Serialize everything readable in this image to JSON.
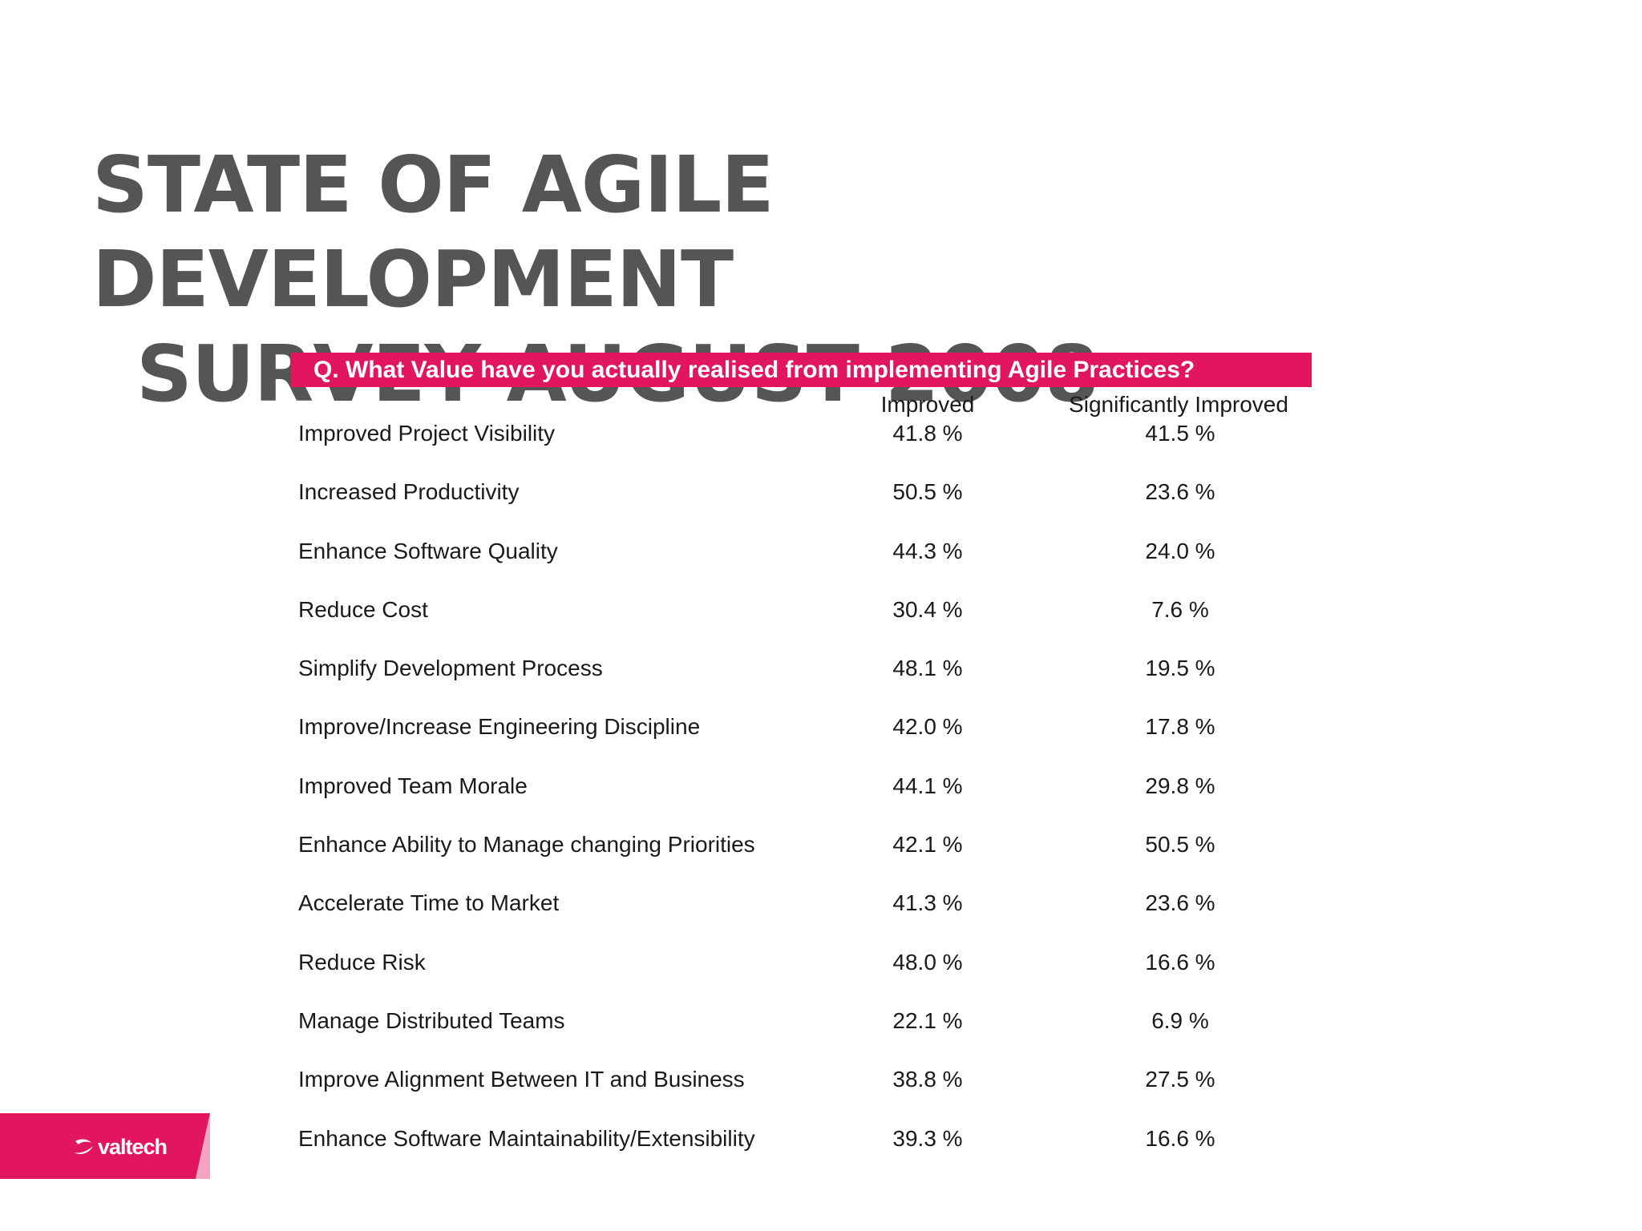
{
  "title": {
    "line1": "STATE OF AGILE DEVELOPMENT",
    "line2": "SURVEY AUGUST 2008"
  },
  "question": "Q. What Value have you actually realised from implementing Agile Practices?",
  "columns": {
    "improved": "Improved",
    "significant": "Significantly Improved"
  },
  "rows": [
    {
      "label": "Improved Project Visibility",
      "improved": "41.8 %",
      "significant": "41.5 %"
    },
    {
      "label": "Increased Productivity",
      "improved": "50.5 %",
      "significant": "23.6 %"
    },
    {
      "label": "Enhance Software Quality",
      "improved": "44.3 %",
      "significant": "24.0 %"
    },
    {
      "label": "Reduce Cost",
      "improved": "30.4 %",
      "significant": "7.6 %"
    },
    {
      "label": "Simplify Development Process",
      "improved": "48.1 %",
      "significant": "19.5 %"
    },
    {
      "label": "Improve/Increase Engineering Discipline",
      "improved": "42.0 %",
      "significant": "17.8 %"
    },
    {
      "label": "Improved Team Morale",
      "improved": "44.1 %",
      "significant": "29.8 %"
    },
    {
      "label": "Enhance Ability to Manage changing Priorities",
      "improved": "42.1 %",
      "significant": "50.5 %"
    },
    {
      "label": "Accelerate Time to Market",
      "improved": "41.3 %",
      "significant": "23.6 %"
    },
    {
      "label": "Reduce Risk",
      "improved": "48.0 %",
      "significant": "16.6 %"
    },
    {
      "label": "Manage Distributed Teams",
      "improved": "22.1 %",
      "significant": "6.9 %"
    },
    {
      "label": "Improve Alignment Between IT and Business",
      "improved": "38.8 %",
      "significant": "27.5 %"
    },
    {
      "label": "Enhance Software Maintainability/Extensibility",
      "improved": "39.3 %",
      "significant": "16.6 %"
    }
  ],
  "logo": {
    "text": "valtech",
    "icon": "valtech-swoosh-icon"
  },
  "colors": {
    "accent": "#e2165e",
    "title": "#555555",
    "text": "#1a1a1a"
  }
}
